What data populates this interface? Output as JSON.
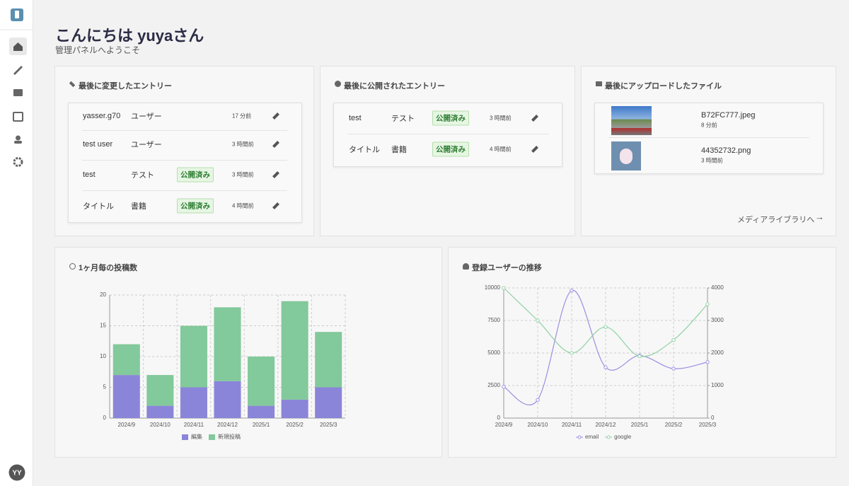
{
  "header": {
    "title": "こんにちは yuyaさん",
    "subtitle": "管理パネルへようこそ"
  },
  "avatar": "YY",
  "recent_edits": {
    "title": "最後に変更したエントリー",
    "rows": [
      {
        "name": "yasser.g70",
        "type": "ユーザー",
        "time": "17 分前"
      },
      {
        "name": "test user",
        "type": "ユーザー",
        "time": "3 時間前"
      },
      {
        "name": "test",
        "type": "テスト",
        "status": "公開済み",
        "time": "3 時間前"
      },
      {
        "name": "タイトル",
        "type": "書籍",
        "status": "公開済み",
        "time": "4 時間前"
      }
    ]
  },
  "recent_published": {
    "title": "最後に公開されたエントリー",
    "rows": [
      {
        "name": "test",
        "type": "テスト",
        "status": "公開済み",
        "time": "3 時間前"
      },
      {
        "name": "タイトル",
        "type": "書籍",
        "status": "公開済み",
        "time": "4 時間前"
      }
    ]
  },
  "uploads": {
    "title": "最後にアップロードしたファイル",
    "files": [
      {
        "name": "B72FC777.jpeg",
        "time": "8 分前"
      },
      {
        "name": "44352732.png",
        "time": "3 時間前"
      }
    ],
    "link": "メディアライブラリへ"
  },
  "chart_data": [
    {
      "type": "bar",
      "title": "1ヶ月毎の投稿数",
      "stacked": true,
      "categories": [
        "2024/9",
        "2024/10",
        "2024/11",
        "2024/12",
        "2025/1",
        "2025/2",
        "2025/3"
      ],
      "series": [
        {
          "name": "編集",
          "color": "#8b85d9",
          "values": [
            7,
            2,
            5,
            6,
            2,
            3,
            5
          ]
        },
        {
          "name": "新規投稿",
          "color": "#82c99b",
          "values": [
            5,
            5,
            10,
            12,
            8,
            16,
            9
          ]
        }
      ],
      "ylim": [
        0,
        20
      ],
      "yticks": [
        0,
        5,
        10,
        15,
        20
      ],
      "grid": true
    },
    {
      "type": "line",
      "title": "登録ユーザーの推移",
      "categories": [
        "2024/9",
        "2024/10",
        "2024/11",
        "2024/12",
        "2025/1",
        "2025/2",
        "2025/3"
      ],
      "series": [
        {
          "name": "email",
          "color": "#9b8fe0",
          "values": [
            2400,
            1400,
            9800,
            3900,
            4800,
            3800,
            4300
          ]
        },
        {
          "name": "google",
          "color": "#8fd1a4",
          "axis": "y2",
          "values": [
            4000,
            3000,
            2000,
            2800,
            1900,
            2400,
            3500
          ]
        }
      ],
      "ylim": [
        0,
        10000
      ],
      "yticks": [
        0,
        2500,
        5000,
        7500,
        10000
      ],
      "y2lim": [
        0,
        4000
      ],
      "y2ticks": [
        0,
        1000,
        2000,
        3000,
        4000
      ],
      "grid": true
    }
  ]
}
